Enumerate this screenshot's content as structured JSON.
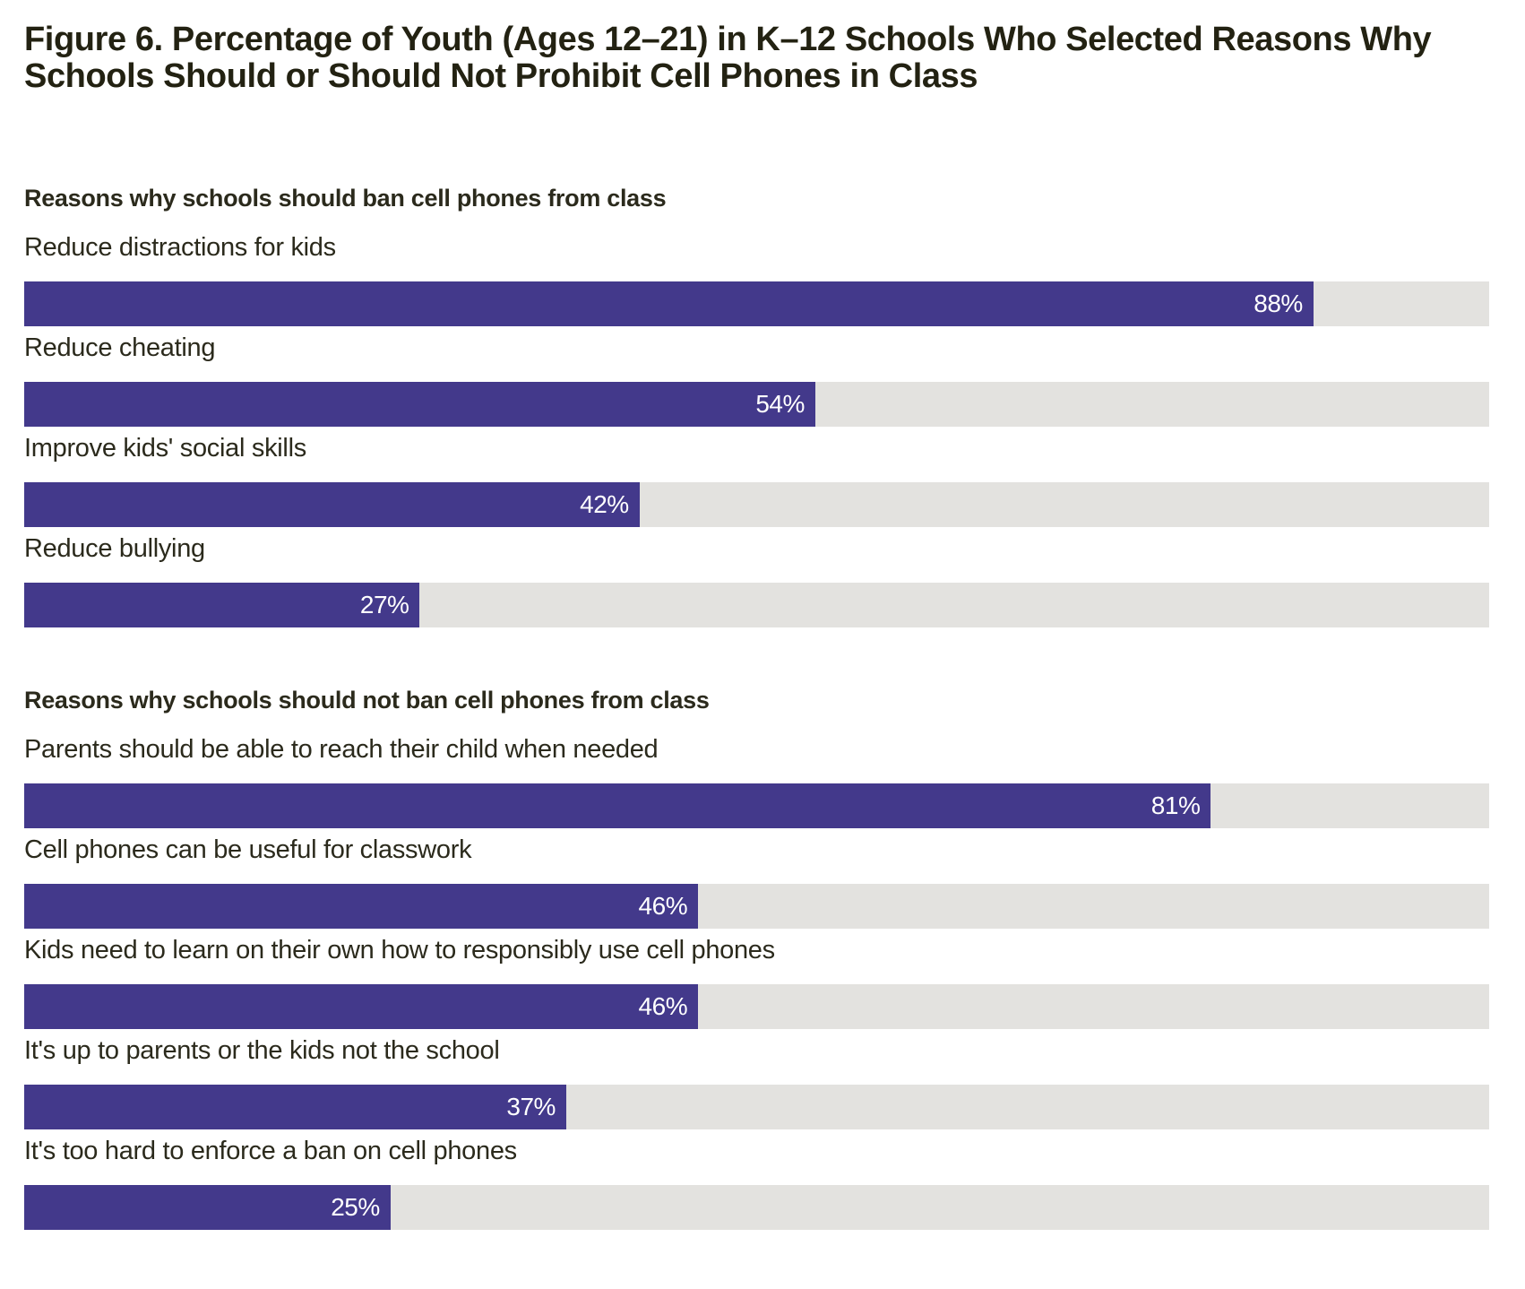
{
  "chart_data": {
    "type": "bar",
    "orientation": "horizontal",
    "title": "Figure 6. Percentage of Youth (Ages 12–21) in K–12 Schools Who Selected Reasons Why Schools Should or Should Not Prohibit Cell Phones in Class",
    "xlabel": "",
    "ylabel": "",
    "xlim": [
      0,
      100
    ],
    "unit": "%",
    "grid": false,
    "colors": {
      "bar": "#43398b",
      "track": "#e3e2df",
      "text": "#2b2a1c",
      "value_text": "#ffffff"
    },
    "groups": [
      {
        "heading": "Reasons why schools should ban cell phones from class",
        "categories": [
          "Reduce distractions for kids",
          "Reduce cheating",
          "Improve kids' social skills",
          "Reduce bullying"
        ],
        "values": [
          88,
          54,
          42,
          27
        ],
        "value_labels": [
          "88%",
          "54%",
          "42%",
          "27%"
        ]
      },
      {
        "heading": "Reasons why schools should not ban cell phones from class",
        "categories": [
          "Parents should be able to reach their child when needed",
          "Cell phones can be useful for classwork",
          "Kids need to learn on their own how to responsibly use cell phones",
          "It's up to parents or the kids not the school",
          "It's too hard to enforce a ban on cell phones"
        ],
        "values": [
          81,
          46,
          46,
          37,
          25
        ],
        "value_labels": [
          "81%",
          "46%",
          "46%",
          "37%",
          "25%"
        ]
      }
    ]
  }
}
